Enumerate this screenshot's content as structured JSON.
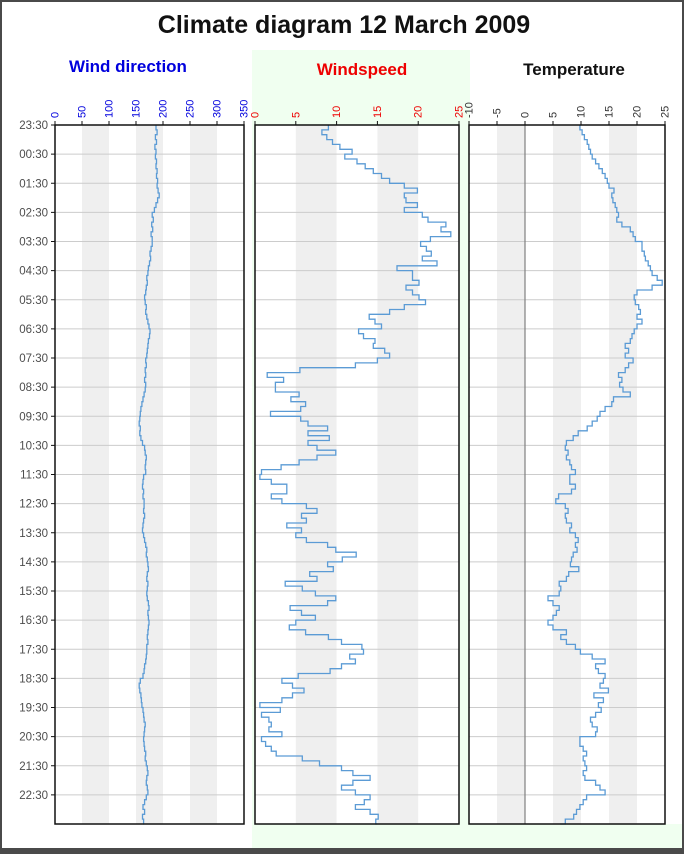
{
  "window": {
    "frame_color": "#4a4a4a",
    "page_background": "#ffffff",
    "green_background": "#f0fff0"
  },
  "title": {
    "text": "Climate diagram 12 March 2009",
    "color": "#111111"
  },
  "styles": {
    "line_color": "#5b9bd5",
    "grid_color": "#cccccc",
    "band_color": "#efefef",
    "plot_background": "#ffffff",
    "box_border_color": "#111111",
    "zero_line_color": "#808080",
    "time_label_color": "#4d4d4d"
  },
  "time_axis": {
    "labels": [
      "23:30",
      "00:30",
      "01:30",
      "02:30",
      "03:30",
      "04:30",
      "05:30",
      "06:30",
      "07:30",
      "08:30",
      "09:30",
      "10:30",
      "11:30",
      "12:30",
      "13:30",
      "14:30",
      "15:30",
      "16:30",
      "17:30",
      "18:30",
      "19:30",
      "20:30",
      "21:30",
      "22:30"
    ],
    "top": "23:30",
    "bottom_end": "23:30",
    "hours_total": 24
  },
  "chart_data": [
    {
      "type": "line",
      "step": true,
      "title": "Wind direction",
      "title_color": "#0000dd",
      "axis_color": "#0000dd",
      "xlim": [
        0,
        350
      ],
      "tick_step": 50,
      "tick_labels": [
        "0",
        "50",
        "100",
        "150",
        "200",
        "250",
        "300",
        "350"
      ],
      "time_start": "23:30",
      "time_step_minutes": 10,
      "zero_line": false,
      "values": [
        187,
        189,
        186,
        188,
        185,
        187,
        186,
        188,
        187,
        189,
        188,
        190,
        189,
        191,
        193,
        190,
        187,
        184,
        180,
        182,
        179,
        181,
        178,
        180,
        180,
        178,
        176,
        177,
        175,
        173,
        172,
        170,
        171,
        169,
        168,
        166,
        167,
        169,
        168,
        170,
        172,
        174,
        176,
        175,
        173,
        172,
        171,
        170,
        168,
        169,
        167,
        168,
        166,
        168,
        167,
        165,
        163,
        161,
        159,
        158,
        157,
        156,
        158,
        157,
        159,
        162,
        166,
        167,
        169,
        168,
        167,
        168,
        164,
        163,
        162,
        164,
        163,
        165,
        165,
        164,
        166,
        164,
        163,
        162,
        164,
        166,
        168,
        170,
        169,
        171,
        172,
        173,
        171,
        170,
        172,
        171,
        170,
        171,
        173,
        174,
        172,
        173,
        174,
        173,
        172,
        171,
        172,
        170,
        170,
        169,
        168,
        166,
        165,
        163,
        158,
        156,
        157,
        159,
        160,
        161,
        163,
        164,
        165,
        167,
        166,
        165,
        164,
        165,
        166,
        168,
        167,
        169,
        171,
        172,
        170,
        169,
        171,
        172,
        169,
        166,
        163,
        166,
        162,
        164,
        165
      ]
    },
    {
      "type": "line",
      "step": true,
      "title": "Windspeed",
      "title_color": "#ee0000",
      "axis_color": "#ee0000",
      "xlim": [
        0,
        25
      ],
      "tick_step": 5,
      "tick_labels": [
        "0",
        "5",
        "10",
        "15",
        "20",
        "25"
      ],
      "time_start": "23:30",
      "time_step_minutes": 10,
      "zero_line": false,
      "values": [
        9.0,
        8.2,
        8.8,
        9.5,
        10.4,
        11.9,
        11.0,
        12.5,
        13.5,
        14.5,
        15.5,
        16.5,
        18.3,
        19.9,
        18.3,
        18.5,
        19.9,
        18.3,
        20.5,
        21.2,
        23.4,
        22.8,
        24.0,
        21.5,
        20.3,
        21.0,
        21.6,
        20.5,
        22.3,
        17.4,
        19.3,
        19.3,
        20.1,
        18.5,
        19.3,
        20.1,
        20.9,
        18.3,
        16.5,
        14.0,
        14.7,
        15.5,
        12.7,
        13.3,
        14.7,
        14.5,
        15.9,
        16.5,
        15.0,
        12.3,
        5.5,
        1.5,
        3.5,
        2.5,
        2.5,
        5.4,
        4.4,
        6.2,
        5.6,
        1.9,
        5.6,
        6.5,
        8.9,
        6.5,
        9.1,
        6.5,
        7.6,
        9.9,
        7.6,
        5.4,
        3.2,
        0.8,
        0.6,
        2.0,
        3.9,
        3.9,
        2.0,
        3.3,
        6.3,
        7.6,
        5.7,
        6.3,
        3.9,
        5.7,
        5.0,
        6.3,
        8.9,
        9.9,
        12.4,
        10.7,
        8.9,
        9.6,
        6.7,
        7.6,
        3.7,
        5.8,
        7.4,
        9.9,
        8.9,
        4.3,
        5.7,
        7.4,
        5.0,
        4.2,
        6.2,
        9.0,
        10.6,
        13.1,
        13.3,
        11.6,
        12.3,
        10.6,
        9.2,
        5.3,
        3.3,
        4.6,
        6.0,
        4.6,
        3.3,
        0.6,
        3.1,
        0.8,
        1.7,
        2.0,
        1.7,
        3.3,
        0.8,
        1.3,
        2.0,
        2.6,
        5.8,
        7.9,
        10.6,
        12.0,
        14.1,
        12.0,
        10.6,
        12.3,
        14.1,
        13.4,
        12.3,
        14.1,
        15.1,
        14.8,
        15.0
      ]
    },
    {
      "type": "line",
      "step": true,
      "title": "Temperature",
      "title_color": "#111111",
      "axis_color": "#333333",
      "xlim": [
        -10,
        25
      ],
      "tick_step": 5,
      "tick_labels": [
        "-10",
        "-5",
        "0",
        "5",
        "10",
        "15",
        "20",
        "25"
      ],
      "time_start": "23:30",
      "time_step_minutes": 10,
      "zero_line": true,
      "values": [
        9.8,
        10.2,
        10.6,
        11.1,
        11.4,
        11.7,
        12.0,
        12.6,
        13.2,
        13.8,
        14.3,
        14.7,
        15.0,
        15.9,
        15.5,
        15.7,
        16.1,
        16.4,
        16.7,
        16.4,
        17.3,
        18.8,
        19.3,
        19.7,
        20.9,
        20.9,
        21.3,
        21.5,
        22.0,
        22.4,
        22.7,
        23.6,
        24.5,
        22.7,
        20.0,
        19.5,
        19.7,
        20.3,
        20.6,
        20.0,
        20.9,
        20.0,
        19.5,
        19.1,
        18.8,
        17.9,
        18.5,
        17.9,
        19.3,
        18.5,
        17.9,
        16.7,
        17.3,
        16.9,
        17.5,
        18.8,
        15.8,
        15.5,
        14.3,
        13.4,
        12.9,
        12.0,
        11.1,
        9.5,
        8.6,
        7.4,
        7.2,
        7.7,
        7.4,
        8.0,
        8.3,
        9.0,
        8.0,
        8.0,
        9.0,
        8.3,
        6.0,
        5.5,
        7.2,
        7.7,
        7.2,
        7.4,
        8.3,
        8.0,
        9.0,
        9.5,
        9.0,
        9.3,
        8.6,
        8.3,
        8.1,
        9.6,
        7.8,
        7.4,
        6.1,
        6.4,
        6.1,
        4.1,
        5.0,
        6.1,
        5.6,
        5.0,
        4.1,
        5.0,
        7.4,
        6.4,
        7.4,
        9.0,
        9.9,
        12.0,
        14.3,
        12.6,
        13.1,
        14.3,
        14.0,
        13.4,
        14.9,
        12.3,
        14.0,
        13.1,
        13.6,
        12.6,
        11.7,
        12.0,
        12.9,
        12.6,
        9.8,
        9.8,
        10.4,
        11.0,
        10.4,
        10.7,
        11.0,
        10.4,
        10.7,
        12.6,
        13.4,
        14.3,
        11.0,
        10.4,
        9.8,
        9.2,
        8.7,
        7.2,
        6.3
      ]
    }
  ]
}
